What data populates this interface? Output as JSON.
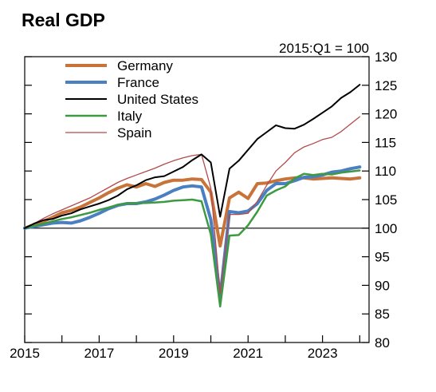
{
  "chart_data": {
    "type": "line",
    "title": "Real GDP",
    "index_note": "2015:Q1 = 100",
    "x_tick_labels": [
      "2015",
      "2017",
      "2019",
      "2021",
      "2023"
    ],
    "x_ticks": [
      2015,
      2017,
      2019,
      2021,
      2023
    ],
    "xlim": [
      2015,
      2024.25
    ],
    "ylim": [
      80,
      130
    ],
    "y_ticks": [
      80,
      85,
      90,
      95,
      100,
      105,
      110,
      115,
      120,
      125,
      130
    ],
    "y_tick_labels": [
      "80",
      "85",
      "90",
      "95",
      "100",
      "105",
      "110",
      "115",
      "120",
      "125",
      "130"
    ],
    "reference_line": 100,
    "axis_side": "right",
    "legend_position": "top-left",
    "x": [
      2015.0,
      2015.25,
      2015.5,
      2015.75,
      2016.0,
      2016.25,
      2016.5,
      2016.75,
      2017.0,
      2017.25,
      2017.5,
      2017.75,
      2018.0,
      2018.25,
      2018.5,
      2018.75,
      2019.0,
      2019.25,
      2019.5,
      2019.75,
      2020.0,
      2020.25,
      2020.5,
      2020.75,
      2021.0,
      2021.25,
      2021.5,
      2021.75,
      2022.0,
      2022.25,
      2022.5,
      2022.75,
      2023.0,
      2023.25,
      2023.5,
      2023.75,
      2024.0
    ],
    "series": [
      {
        "name": "Germany",
        "color": "#c8733a",
        "width": 4,
        "values": [
          100.0,
          100.6,
          101.2,
          101.9,
          102.7,
          103.1,
          103.7,
          104.5,
          105.3,
          106.2,
          107.0,
          107.6,
          107.2,
          107.8,
          107.3,
          108.0,
          108.4,
          108.4,
          108.6,
          108.5,
          106.3,
          96.9,
          105.3,
          106.3,
          105.2,
          107.8,
          107.9,
          108.3,
          108.6,
          108.8,
          108.8,
          108.6,
          108.7,
          108.8,
          108.7,
          108.6,
          108.8
        ]
      },
      {
        "name": "France",
        "color": "#4a7fc1",
        "width": 4,
        "values": [
          100.0,
          100.3,
          100.6,
          100.9,
          101.0,
          100.9,
          101.3,
          101.9,
          102.6,
          103.4,
          104.0,
          104.3,
          104.3,
          104.6,
          105.1,
          105.8,
          106.6,
          107.2,
          107.4,
          107.2,
          101.5,
          88.0,
          102.9,
          102.7,
          103.0,
          104.3,
          106.6,
          107.8,
          107.8,
          108.3,
          108.9,
          109.0,
          109.3,
          109.8,
          110.0,
          110.4,
          110.7
        ]
      },
      {
        "name": "United States",
        "color": "#000000",
        "width": 2,
        "values": [
          100.0,
          100.8,
          101.4,
          101.6,
          102.2,
          102.6,
          103.3,
          103.8,
          104.3,
          104.9,
          105.7,
          106.8,
          107.5,
          108.4,
          108.9,
          109.1,
          109.9,
          110.7,
          111.9,
          112.9,
          111.5,
          102.0,
          110.4,
          111.8,
          113.7,
          115.6,
          116.8,
          118.0,
          117.5,
          117.4,
          118.1,
          119.1,
          120.2,
          121.3,
          122.8,
          123.8,
          125.1
        ]
      },
      {
        "name": "Italy",
        "color": "#3d9a40",
        "width": 2.5,
        "values": [
          100.0,
          100.4,
          100.8,
          101.2,
          101.6,
          101.9,
          102.3,
          102.7,
          103.2,
          103.6,
          104.1,
          104.3,
          104.4,
          104.4,
          104.5,
          104.6,
          104.8,
          104.9,
          105.0,
          104.7,
          98.9,
          86.3,
          98.7,
          98.8,
          100.5,
          102.9,
          105.7,
          106.6,
          107.3,
          108.7,
          109.5,
          109.3,
          109.5,
          109.4,
          109.7,
          109.9,
          110.1
        ]
      },
      {
        "name": "Spain",
        "color": "#b34a4a",
        "width": 1.3,
        "values": [
          100.0,
          100.8,
          101.7,
          102.5,
          103.2,
          103.9,
          104.6,
          105.3,
          106.2,
          107.1,
          108.0,
          108.7,
          109.3,
          109.9,
          110.5,
          111.2,
          111.8,
          112.3,
          112.7,
          112.9,
          107.0,
          88.5,
          102.4,
          102.4,
          102.6,
          104.7,
          107.5,
          110.0,
          111.5,
          113.2,
          114.2,
          114.8,
          115.5,
          115.9,
          116.9,
          118.2,
          119.5
        ]
      }
    ]
  }
}
